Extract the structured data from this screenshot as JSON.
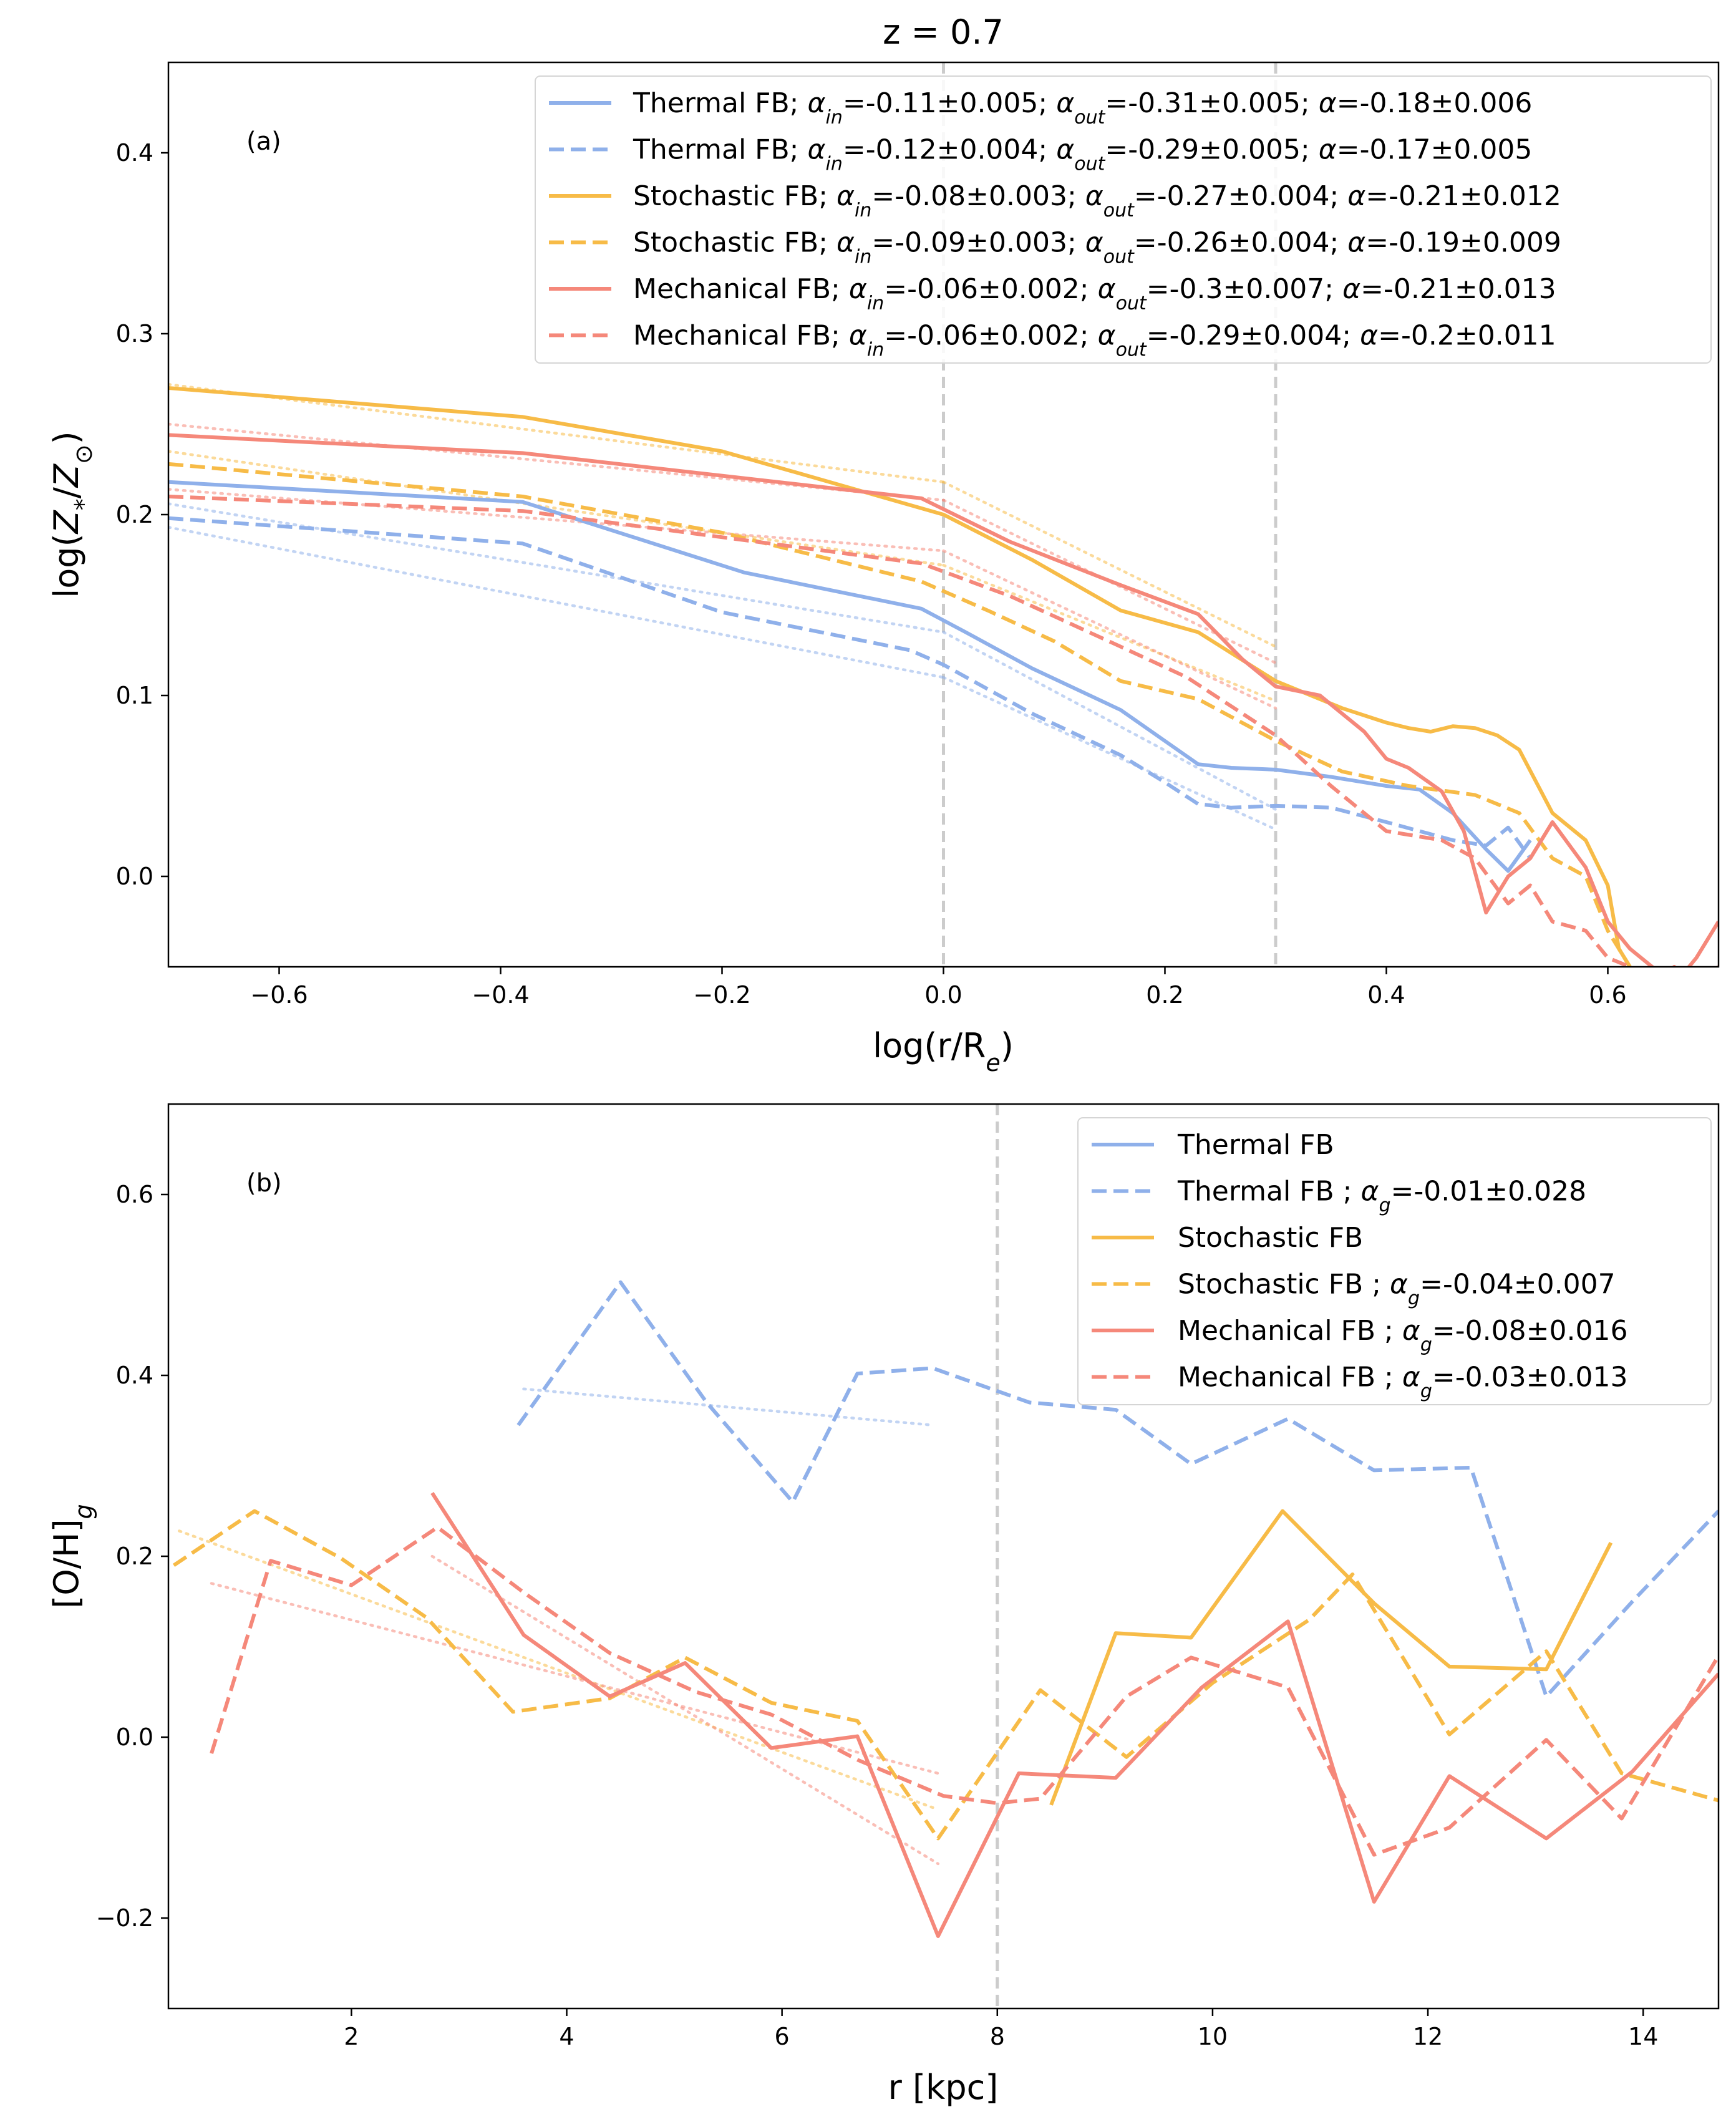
{
  "title": "z = 0.7",
  "colors": {
    "thermal": "#8fb0ea",
    "stochastic": "#f7bb47",
    "mechanical": "#f5887a",
    "refline": "#cccccc"
  },
  "chart_data": [
    {
      "type": "line",
      "panel_label": "(a)",
      "xlabel": "log(r/Re)",
      "ylabel": "log(Z*/Z⊙)",
      "xlim": [
        -0.7,
        0.7
      ],
      "ylim": [
        -0.05,
        0.45
      ],
      "xticks": [
        -0.6,
        -0.4,
        -0.2,
        0.0,
        0.2,
        0.4,
        0.6
      ],
      "yticks": [
        0.0,
        0.1,
        0.2,
        0.3,
        0.4
      ],
      "xtick_labels": [
        "−0.6",
        "−0.4",
        "−0.2",
        "0.0",
        "0.2",
        "0.4",
        "0.6"
      ],
      "ytick_labels": [
        "0.0",
        "0.1",
        "0.2",
        "0.3",
        "0.4"
      ],
      "vlines": [
        0.0,
        0.3
      ],
      "legend_position": "top-right",
      "series": [
        {
          "name": "Thermal FB; αin=-0.11±0.005; αout=-0.31±0.005; α=-0.18±0.006",
          "color": "thermal",
          "style": "solid",
          "x": [
            -0.7,
            -0.38,
            -0.18,
            -0.02,
            0.02,
            0.08,
            0.16,
            0.23,
            0.26,
            0.3,
            0.35,
            0.4,
            0.43,
            0.46,
            0.49,
            0.51,
            0.53
          ],
          "y": [
            0.218,
            0.207,
            0.168,
            0.148,
            0.135,
            0.115,
            0.092,
            0.062,
            0.06,
            0.059,
            0.055,
            0.05,
            0.048,
            0.035,
            0.015,
            0.003,
            0.02
          ]
        },
        {
          "name": "Thermal FB; αin=-0.12±0.004; αout=-0.29±0.005; α=-0.17±0.005",
          "color": "thermal",
          "style": "dashed",
          "x": [
            -0.7,
            -0.38,
            -0.2,
            -0.03,
            0.0,
            0.08,
            0.16,
            0.2,
            0.23,
            0.26,
            0.3,
            0.35,
            0.4,
            0.46,
            0.49,
            0.51,
            0.53
          ],
          "y": [
            0.198,
            0.184,
            0.146,
            0.125,
            0.117,
            0.09,
            0.067,
            0.052,
            0.04,
            0.038,
            0.039,
            0.038,
            0.03,
            0.02,
            0.017,
            0.027,
            0.01
          ]
        },
        {
          "name": "Stochastic FB; αin=-0.08±0.003; αout=-0.27±0.004; α=-0.21±0.012",
          "color": "stochastic",
          "style": "solid",
          "x": [
            -0.7,
            -0.38,
            -0.2,
            0.0,
            0.08,
            0.16,
            0.23,
            0.3,
            0.36,
            0.4,
            0.42,
            0.44,
            0.46,
            0.48,
            0.5,
            0.52,
            0.55,
            0.58,
            0.6,
            0.61,
            0.62
          ],
          "y": [
            0.27,
            0.254,
            0.235,
            0.2,
            0.175,
            0.147,
            0.135,
            0.108,
            0.093,
            0.085,
            0.082,
            0.08,
            0.083,
            0.082,
            0.078,
            0.07,
            0.035,
            0.02,
            -0.005,
            -0.04,
            -0.05
          ]
        },
        {
          "name": "Stochastic FB; αin=-0.09±0.003; αout=-0.26±0.004; α=-0.19±0.009",
          "color": "stochastic",
          "style": "dashed",
          "x": [
            -0.7,
            -0.38,
            -0.2,
            -0.02,
            0.04,
            0.1,
            0.16,
            0.23,
            0.3,
            0.36,
            0.42,
            0.48,
            0.52,
            0.55,
            0.58,
            0.6,
            0.62
          ],
          "y": [
            0.228,
            0.21,
            0.19,
            0.163,
            0.147,
            0.13,
            0.108,
            0.098,
            0.075,
            0.058,
            0.05,
            0.045,
            0.035,
            0.01,
            0.0,
            -0.03,
            -0.05
          ]
        },
        {
          "name": "Mechanical FB; αin=-0.06±0.002; αout=-0.3±0.007; α=-0.21±0.013",
          "color": "mechanical",
          "style": "solid",
          "x": [
            -0.7,
            -0.38,
            -0.02,
            0.06,
            0.16,
            0.23,
            0.27,
            0.3,
            0.34,
            0.38,
            0.4,
            0.42,
            0.45,
            0.47,
            0.49,
            0.51,
            0.53,
            0.55,
            0.58,
            0.6,
            0.62,
            0.64,
            0.66,
            0.68,
            0.7
          ],
          "y": [
            0.244,
            0.234,
            0.209,
            0.185,
            0.161,
            0.145,
            0.12,
            0.105,
            0.1,
            0.08,
            0.065,
            0.06,
            0.047,
            0.025,
            -0.02,
            0.0,
            0.01,
            0.03,
            0.005,
            -0.025,
            -0.04,
            -0.05,
            -0.06,
            -0.045,
            -0.025
          ]
        },
        {
          "name": "Mechanical FB; αin=-0.06±0.002; αout=-0.29±0.004; α=-0.2±0.011",
          "color": "mechanical",
          "style": "dashed",
          "x": [
            -0.7,
            -0.38,
            -0.02,
            0.06,
            0.16,
            0.22,
            0.27,
            0.3,
            0.35,
            0.4,
            0.45,
            0.48,
            0.51,
            0.53,
            0.55,
            0.58,
            0.6,
            0.62,
            0.64,
            0.66,
            0.68,
            0.7
          ],
          "y": [
            0.21,
            0.202,
            0.173,
            0.155,
            0.127,
            0.11,
            0.09,
            0.078,
            0.05,
            0.025,
            0.02,
            0.01,
            -0.015,
            -0.005,
            -0.025,
            -0.03,
            -0.045,
            -0.05,
            -0.06,
            -0.05,
            -0.06,
            -0.05
          ]
        }
      ],
      "fits": [
        {
          "color": "thermal",
          "x": [
            -0.7,
            0.0,
            0.0,
            0.3
          ],
          "y": [
            0.206,
            0.135,
            0.135,
            0.037
          ]
        },
        {
          "color": "thermal",
          "x": [
            -0.7,
            0.0,
            0.0,
            0.3
          ],
          "y": [
            0.193,
            0.11,
            0.11,
            0.026
          ]
        },
        {
          "color": "stochastic",
          "x": [
            -0.7,
            0.0,
            0.0,
            0.3
          ],
          "y": [
            0.272,
            0.218,
            0.218,
            0.127
          ]
        },
        {
          "color": "stochastic",
          "x": [
            -0.7,
            0.0,
            0.0,
            0.3
          ],
          "y": [
            0.235,
            0.172,
            0.172,
            0.097
          ]
        },
        {
          "color": "mechanical",
          "x": [
            -0.7,
            0.0,
            0.0,
            0.3
          ],
          "y": [
            0.25,
            0.208,
            0.208,
            0.118
          ]
        },
        {
          "color": "mechanical",
          "x": [
            -0.7,
            0.0,
            0.0,
            0.3
          ],
          "y": [
            0.214,
            0.18,
            0.18,
            0.093
          ]
        }
      ]
    },
    {
      "type": "line",
      "panel_label": "(b)",
      "xlabel": "r [kpc]",
      "ylabel": "[O/H]g",
      "xlim": [
        0.3,
        14.7
      ],
      "ylim": [
        -0.3,
        0.7
      ],
      "xticks": [
        2,
        4,
        6,
        8,
        10,
        12,
        14
      ],
      "yticks": [
        -0.2,
        0.0,
        0.2,
        0.4,
        0.6
      ],
      "xtick_labels": [
        "2",
        "4",
        "6",
        "8",
        "10",
        "12",
        "14"
      ],
      "ytick_labels": [
        "−0.2",
        "0.0",
        "0.2",
        "0.4",
        "0.6"
      ],
      "vlines": [
        8.0
      ],
      "legend_position": "top-right",
      "series": [
        {
          "name": "Thermal FB",
          "color": "thermal",
          "style": "solid",
          "x": [],
          "y": []
        },
        {
          "name": "Thermal FB ; αg=-0.01±0.028",
          "color": "thermal",
          "style": "dashed",
          "x": [
            3.55,
            4.5,
            5.3,
            6.1,
            6.7,
            7.4,
            8.3,
            9.1,
            9.8,
            10.7,
            11.5,
            12.4,
            13.1,
            13.9,
            14.7
          ],
          "y": [
            0.345,
            0.503,
            0.37,
            0.26,
            0.402,
            0.408,
            0.37,
            0.362,
            0.302,
            0.352,
            0.295,
            0.298,
            0.045,
            0.15,
            0.25
          ]
        },
        {
          "name": "Stochastic FB",
          "color": "stochastic",
          "style": "solid",
          "x": [
            8.5,
            9.1,
            9.8,
            10.65,
            11.5,
            12.2,
            13.1,
            13.7
          ],
          "y": [
            -0.075,
            0.115,
            0.11,
            0.25,
            0.148,
            0.078,
            0.075,
            0.215
          ]
        },
        {
          "name": "Stochastic FB ; αg=-0.04±0.007",
          "color": "stochastic",
          "style": "dashed",
          "x": [
            0.35,
            1.1,
            1.9,
            2.7,
            3.5,
            4.4,
            5.1,
            5.9,
            6.7,
            7.45,
            8.4,
            9.2,
            10.0,
            10.9,
            11.3,
            12.2,
            13.1,
            13.8,
            14.7
          ],
          "y": [
            0.19,
            0.25,
            0.198,
            0.132,
            0.028,
            0.043,
            0.088,
            0.038,
            0.018,
            -0.112,
            0.052,
            -0.022,
            0.06,
            0.13,
            0.18,
            0.003,
            0.095,
            -0.04,
            -0.07
          ]
        },
        {
          "name": "Mechanical FB ; αg=-0.08±0.016",
          "color": "mechanical",
          "style": "solid",
          "x": [
            2.75,
            3.6,
            4.4,
            5.1,
            5.9,
            6.7,
            7.45,
            8.2,
            9.1,
            9.9,
            10.7,
            11.5,
            12.2,
            13.1,
            13.9,
            14.7
          ],
          "y": [
            0.27,
            0.113,
            0.045,
            0.082,
            -0.012,
            0.001,
            -0.22,
            -0.04,
            -0.045,
            0.055,
            0.128,
            -0.182,
            -0.043,
            -0.112,
            -0.038,
            0.07
          ]
        },
        {
          "name": "Mechanical FB ; αg=-0.03±0.013",
          "color": "mechanical",
          "style": "dashed",
          "x": [
            0.7,
            1.25,
            2.0,
            2.8,
            3.6,
            4.4,
            5.2,
            5.9,
            6.7,
            7.5,
            8.0,
            8.4,
            9.2,
            9.8,
            10.7,
            11.5,
            12.2,
            13.1,
            13.8,
            14.7
          ],
          "y": [
            -0.018,
            0.195,
            0.168,
            0.232,
            0.16,
            0.093,
            0.05,
            0.025,
            -0.025,
            -0.065,
            -0.073,
            -0.068,
            0.045,
            0.088,
            0.055,
            -0.13,
            -0.1,
            -0.003,
            -0.09,
            0.09
          ]
        }
      ],
      "fits": [
        {
          "color": "thermal",
          "x": [
            3.6,
            7.4
          ],
          "y": [
            0.385,
            0.345
          ]
        },
        {
          "color": "stochastic",
          "x": [
            0.4,
            7.45
          ],
          "y": [
            0.228,
            -0.08
          ]
        },
        {
          "color": "mechanical",
          "x": [
            0.7,
            7.45
          ],
          "y": [
            0.17,
            -0.04
          ]
        },
        {
          "color": "mechanical",
          "x": [
            2.75,
            7.45
          ],
          "y": [
            0.2,
            -0.14
          ]
        }
      ]
    }
  ]
}
